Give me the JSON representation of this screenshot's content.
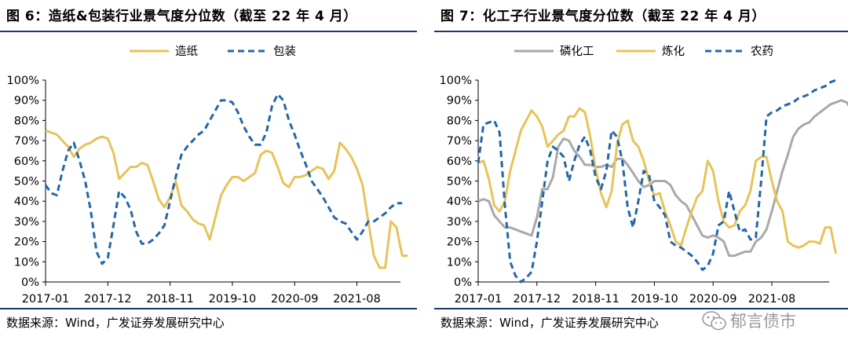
{
  "left": {
    "title": "图 6：造纸&包装行业景气度分位数（截至 22 年 4 月）",
    "source": "数据来源：Wind，广发证券发展研究中心",
    "chart_data": {
      "type": "line",
      "title": "造纸&包装行业景气度分位数（截至 22 年 4 月）",
      "ylim": [
        0,
        100
      ],
      "ytick_labels": [
        "0%",
        "10%",
        "20%",
        "30%",
        "40%",
        "50%",
        "60%",
        "70%",
        "80%",
        "90%",
        "100%"
      ],
      "xtick_labels": [
        "2017-01",
        "2017-12",
        "2018-11",
        "2019-10",
        "2020-09",
        "2021-08"
      ],
      "x_start": "2017-01",
      "series": [
        {
          "name": "造纸",
          "color": "#e6c45a",
          "dash": "solid",
          "values": [
            75,
            74,
            73,
            70,
            67,
            62,
            66,
            68,
            69,
            71,
            72,
            71,
            64,
            51,
            54,
            57,
            57,
            59,
            58,
            50,
            41,
            37,
            42,
            50,
            38,
            35,
            31,
            29,
            28,
            21,
            32,
            43,
            48,
            52,
            52,
            50,
            52,
            54,
            63,
            65,
            64,
            57,
            49,
            47,
            52,
            52,
            53,
            55,
            57,
            56,
            51,
            55,
            69,
            66,
            62,
            56,
            48,
            30,
            13,
            7,
            7,
            30,
            27,
            13,
            13
          ]
        },
        {
          "name": "包装",
          "color": "#2467a8",
          "dash": "dashed",
          "values": [
            48,
            44,
            43,
            55,
            65,
            69,
            60,
            50,
            35,
            15,
            9,
            12,
            28,
            45,
            42,
            36,
            25,
            19,
            19,
            21,
            24,
            28,
            40,
            52,
            63,
            67,
            70,
            73,
            75,
            80,
            85,
            90,
            90,
            89,
            84,
            77,
            72,
            68,
            68,
            74,
            87,
            93,
            90,
            80,
            73,
            65,
            58,
            50,
            46,
            42,
            37,
            32,
            30,
            29,
            25,
            21,
            25,
            30,
            30,
            32,
            34,
            37,
            39,
            39
          ]
        }
      ]
    }
  },
  "right": {
    "title": "图 7：化工子行业景气度分位数（截至 22 年 4 月）",
    "source": "数据来源：Wind，广发证券发展研究中心",
    "chart_data": {
      "type": "line",
      "title": "化工子行业景气度分位数（截至 22 年 4 月）",
      "ylim": [
        0,
        100
      ],
      "ytick_labels": [
        "0%",
        "10%",
        "20%",
        "30%",
        "40%",
        "50%",
        "60%",
        "70%",
        "80%",
        "90%",
        "100%"
      ],
      "xtick_labels": [
        "2017-01",
        "2017-12",
        "2018-11",
        "2019-10",
        "2020-09",
        "2021-08"
      ],
      "x_start": "2017-01",
      "series": [
        {
          "name": "磷化工",
          "color": "#a9a9a9",
          "dash": "solid",
          "values": [
            40,
            41,
            40,
            33,
            30,
            27,
            27,
            26,
            25,
            24,
            23,
            32,
            46,
            46,
            52,
            67,
            71,
            70,
            65,
            62,
            58,
            58,
            57,
            57,
            58,
            57,
            61,
            61,
            58,
            54,
            50,
            47,
            48,
            50,
            50,
            50,
            48,
            43,
            40,
            38,
            33,
            28,
            23,
            22,
            23,
            22,
            20,
            13,
            13,
            14,
            15,
            15,
            20,
            22,
            26,
            35,
            45,
            55,
            63,
            72,
            76,
            78,
            79,
            82,
            84,
            86,
            88,
            89,
            90,
            89,
            85,
            87,
            87
          ]
        },
        {
          "name": "炼化",
          "color": "#e6c45a",
          "dash": "solid",
          "values": [
            59,
            60,
            51,
            38,
            35,
            40,
            55,
            65,
            75,
            80,
            85,
            82,
            77,
            67,
            70,
            73,
            75,
            82,
            82,
            86,
            84,
            72,
            56,
            44,
            37,
            45,
            68,
            78,
            80,
            70,
            67,
            60,
            50,
            43,
            44,
            35,
            28,
            20,
            18,
            27,
            35,
            42,
            45,
            60,
            55,
            40,
            30,
            27,
            28,
            35,
            38,
            45,
            60,
            62,
            62,
            50,
            40,
            35,
            20,
            18,
            17,
            18,
            20,
            20,
            19,
            27,
            27,
            14
          ]
        },
        {
          "name": "农药",
          "color": "#2467a8",
          "dash": "dashed",
          "values": [
            59,
            78,
            79,
            80,
            74,
            38,
            10,
            3,
            0,
            2,
            5,
            20,
            40,
            60,
            67,
            65,
            62,
            50,
            60,
            68,
            72,
            65,
            52,
            46,
            55,
            75,
            72,
            60,
            37,
            27,
            40,
            55,
            53,
            40,
            37,
            33,
            20,
            18,
            17,
            15,
            13,
            10,
            6,
            8,
            14,
            28,
            30,
            45,
            35,
            25,
            26,
            21,
            22,
            50,
            82,
            84,
            85,
            87,
            88,
            89,
            91,
            92,
            93,
            95,
            96,
            97,
            99,
            100
          ]
        }
      ]
    }
  },
  "watermark": {
    "text": "郁言债市",
    "icon": "wechat-icon"
  },
  "colors": {
    "rule": "#1b3a6b",
    "axis": "#000000"
  }
}
